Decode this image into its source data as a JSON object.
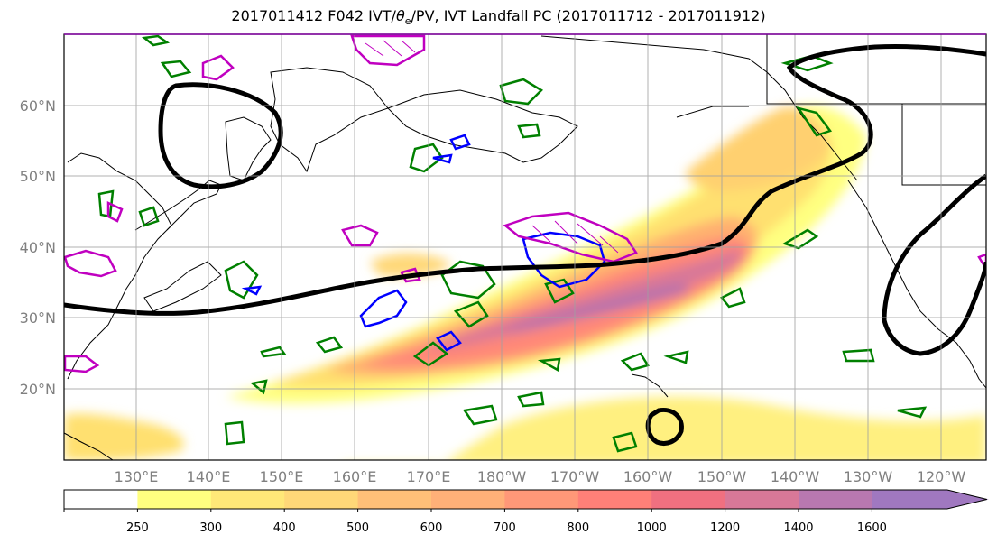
{
  "title_prefix": "2017011412 F042 IVT/",
  "title_theta": "θ",
  "title_sub": "e",
  "title_suffix": "/PV, IVT Landfall PC (2017011712 - 2017011912)",
  "lat_labels": [
    "60°N",
    "50°N",
    "40°N",
    "30°N",
    "20°N"
  ],
  "lon_labels": [
    "130°E",
    "140°E",
    "150°E",
    "160°E",
    "170°E",
    "180°W",
    "170°W",
    "160°W",
    "150°W",
    "140°W",
    "130°W",
    "120°W"
  ],
  "colorbar": {
    "labels": [
      "250",
      "300",
      "400",
      "500",
      "600",
      "700",
      "800",
      "1000",
      "1200",
      "1400",
      "1600"
    ],
    "colors": [
      "#ffffff",
      "#ffff80",
      "#ffe878",
      "#ffd878",
      "#ffc078",
      "#ffb078",
      "#ff9878",
      "#ff8078",
      "#f07080",
      "#d87898",
      "#b878b0",
      "#a078c0"
    ]
  },
  "legend_colors": {
    "landfall_pc_contour": "#000000",
    "theta_e": "#008000",
    "pv_blue": "#0000ff",
    "pv_magenta": "#c000c0"
  }
}
